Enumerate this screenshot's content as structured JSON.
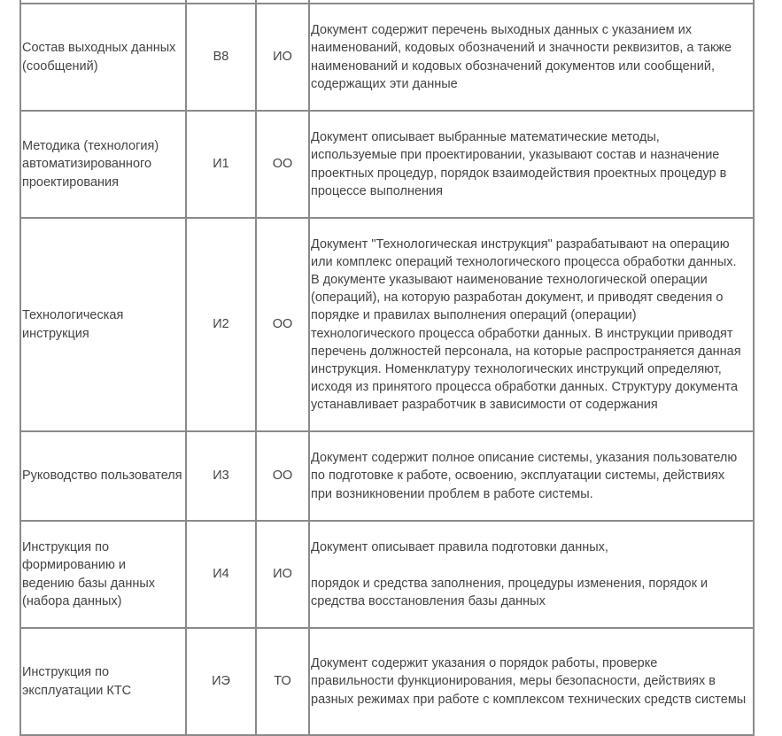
{
  "rows": [
    {
      "name": "",
      "code": "",
      "type": "",
      "desc": ""
    },
    {
      "name": "Состав выходных данных\n(сообщений)",
      "code": "В8",
      "type": "ИО",
      "desc": "Документ содержит перечень выходных данных с указанием их\nнаименований, кодовых обозначений и значности реквизитов, а также\nнаименований и кодовых обозначений документов или сообщений,\nсодержащих эти данные"
    },
    {
      "name": "Методика (технология)\nавтоматизированного\nпроектирования",
      "code": "И1",
      "type": "ОО",
      "desc": "Документ описывает выбранные математические методы,\nиспользуемые при проектировании, указывают состав и назначение\nпроектных процедур, порядок взаимодействия проектных процедур в\nпроцессе выполнения"
    },
    {
      "name": "Технологическая\nинструкция",
      "code": "И2",
      "type": "ОО",
      "desc": "Документ \"Технологическая инструкция\" разрабатывают на операцию\nили комплекс операций технологического процесса обработки данных.\nВ документе указывают наименование технологической операции\n(операций), на которую разработан документ, и приводят сведения о\nпорядке и правилах выполнения операций (операции)\nтехнологического процесса обработки данных. В инструкции приводят\nперечень должностей персонала, на которые распространяется данная\nинструкция.  Номенклатуру технологических инструкций определяют,\nисходя из принятого процесса обработки данных. Структуру документа\nустанавливает разработчик в зависимости от содержания"
    },
    {
      "name": "Руководство пользователя",
      "code": "И3",
      "type": "ОО",
      "desc": "Документ содержит полное описание системы, указания пользователю\nпо подготовке к работе, освоению, эксплуатации системы,  действиях\nпри возникновении проблем в работе системы."
    },
    {
      "name": "Инструкция по\nформированию и\nведению базы данных\n(набора данных)",
      "code": "И4",
      "type": "ИО",
      "desc": "Документ описывает правила подготовки данных,\n\nпорядок и средства заполнения, процедуры изменения, порядок и\nсредства восстановления базы данных"
    },
    {
      "name": "Инструкция по\nэксплуатации КТС",
      "code": "ИЭ",
      "type": "ТО",
      "desc": "Документ содержит указания о порядок работы, проверке\nправильности функционирования, меры безопасности, действиях в\nразных режимах при работе с комплексом технических средств системы"
    }
  ]
}
